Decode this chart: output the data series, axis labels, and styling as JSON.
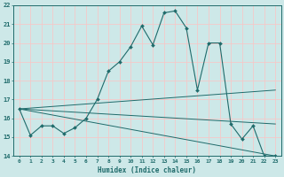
{
  "title": "",
  "xlabel": "Humidex (Indice chaleur)",
  "ylabel": "",
  "xlim": [
    -0.5,
    23.5
  ],
  "ylim": [
    14,
    22
  ],
  "yticks": [
    14,
    15,
    16,
    17,
    18,
    19,
    20,
    21,
    22
  ],
  "xticks": [
    0,
    1,
    2,
    3,
    4,
    5,
    6,
    7,
    8,
    9,
    10,
    11,
    12,
    13,
    14,
    15,
    16,
    17,
    18,
    19,
    20,
    21,
    22,
    23
  ],
  "xtick_labels": [
    "0",
    "1",
    "2",
    "3",
    "4",
    "5",
    "6",
    "7",
    "8",
    "9",
    "10",
    "11",
    "12",
    "13",
    "14",
    "15",
    "16",
    "17",
    "18",
    "19",
    "20",
    "21",
    "22",
    "23"
  ],
  "bg_color": "#cde8e8",
  "line_color": "#1f6b6b",
  "grid_color": "#f5c8c8",
  "main_curve": {
    "x": [
      0,
      1,
      2,
      3,
      4,
      5,
      6,
      7,
      8,
      9,
      10,
      11,
      12,
      13,
      14,
      15,
      16,
      17,
      18,
      19,
      20,
      21,
      22,
      23
    ],
    "y": [
      16.5,
      15.1,
      15.6,
      15.6,
      15.2,
      15.5,
      16.0,
      17.0,
      18.5,
      19.0,
      19.8,
      20.9,
      19.9,
      21.6,
      21.7,
      20.8,
      17.5,
      20.0,
      20.0,
      15.7,
      14.9,
      15.6,
      14.0,
      14.0
    ]
  },
  "trend_lines": [
    {
      "x": [
        0,
        23
      ],
      "y": [
        16.5,
        15.7
      ]
    },
    {
      "x": [
        0,
        23
      ],
      "y": [
        16.5,
        14.0
      ]
    },
    {
      "x": [
        0,
        23
      ],
      "y": [
        16.5,
        17.5
      ]
    }
  ]
}
